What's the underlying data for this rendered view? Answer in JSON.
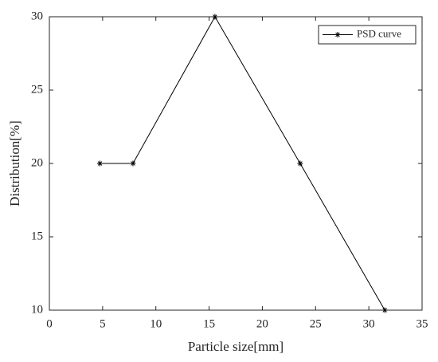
{
  "chart_data": {
    "type": "line",
    "xlabel": "Particle size[mm]",
    "ylabel": "Distribution[%]",
    "x": [
      4.75,
      7.85,
      15.55,
      23.55,
      31.5
    ],
    "series": [
      {
        "name": "PSD curve",
        "color": "#000000",
        "values": [
          20,
          20,
          30,
          20,
          10
        ],
        "marker": "star"
      }
    ],
    "xlim": [
      0,
      35
    ],
    "xticks": [
      0,
      5,
      10,
      15,
      20,
      25,
      30,
      35
    ],
    "ylim": [
      10,
      30
    ],
    "yticks": [
      10,
      15,
      20,
      25,
      30
    ],
    "legend": "upper right",
    "grid": false
  }
}
